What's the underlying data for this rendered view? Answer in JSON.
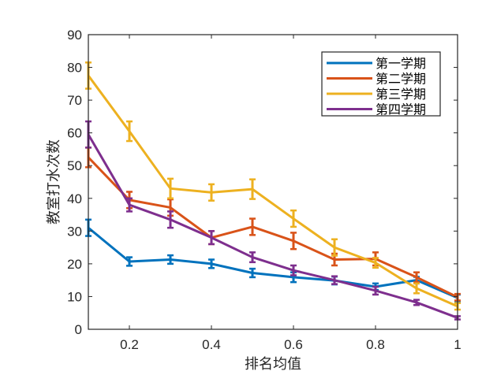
{
  "chart_data": {
    "type": "line",
    "title": "",
    "xlabel": "排名均值",
    "ylabel": "教室打水次数",
    "xlim": [
      0.1,
      1
    ],
    "ylim": [
      0,
      90
    ],
    "x": [
      0.1,
      0.2,
      0.3,
      0.4,
      0.5,
      0.6,
      0.7,
      0.8,
      0.9,
      1.0
    ],
    "xticks": [
      0.2,
      0.4,
      0.6,
      0.8,
      1
    ],
    "xtick_labels": [
      "0.2",
      "0.4",
      "0.6",
      "0.8",
      "1"
    ],
    "yticks": [
      0,
      10,
      20,
      30,
      40,
      50,
      60,
      70,
      80,
      90
    ],
    "ytick_labels": [
      "0",
      "10",
      "20",
      "30",
      "40",
      "50",
      "60",
      "70",
      "80",
      "90"
    ],
    "grid": false,
    "legend_position": "top-right",
    "error_bars": true,
    "series": [
      {
        "name": "第一学期",
        "color": "#0072BD",
        "values": [
          31,
          20.7,
          21.3,
          20,
          17.2,
          15.9,
          14.9,
          13,
          15,
          9.6
        ],
        "errors": [
          2.5,
          1.3,
          1.3,
          1.3,
          1.3,
          1.5,
          1.2,
          1,
          1,
          1
        ]
      },
      {
        "name": "第二学期",
        "color": "#D95319",
        "values": [
          52.5,
          39.5,
          37.2,
          28,
          31.3,
          27,
          21.3,
          21.5,
          15.9,
          9.8
        ],
        "errors": [
          3,
          2.5,
          2.5,
          2,
          2.5,
          2.5,
          1.8,
          2,
          1.5,
          1
        ]
      },
      {
        "name": "第三学期",
        "color": "#EDB120",
        "values": [
          77.5,
          60.5,
          43,
          41.8,
          42.8,
          33.8,
          25,
          20.3,
          12.5,
          7
        ],
        "errors": [
          4,
          3,
          3,
          2.5,
          3,
          2.5,
          2.5,
          1.5,
          1.5,
          1
        ]
      },
      {
        "name": "第四学期",
        "color": "#7E2F8E",
        "values": [
          59.5,
          38,
          33.5,
          28,
          22,
          18,
          15,
          11.8,
          8.2,
          3.5
        ],
        "errors": [
          4,
          2,
          2.5,
          2,
          1.5,
          1.5,
          1.2,
          1.2,
          0.8,
          0.5
        ]
      }
    ]
  }
}
